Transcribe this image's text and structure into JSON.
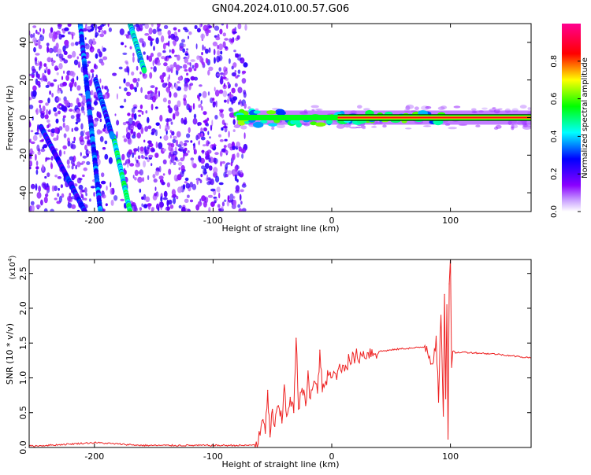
{
  "title": "GN04.2024.010.00.57.G06",
  "chart_data": [
    {
      "type": "heatmap",
      "name": "spectrogram",
      "xlabel": "Height of straight line (km)",
      "ylabel": "Frequency (Hz)",
      "xlim": [
        -255,
        168
      ],
      "ylim": [
        -50,
        50
      ],
      "x_ticks": [
        -200,
        -100,
        0,
        100
      ],
      "y_ticks": [
        -40,
        -20,
        0,
        20,
        40
      ],
      "features": [
        {
          "kind": "diagonal-streak",
          "x": [
            -212,
            -195
          ],
          "y": [
            50,
            -50
          ],
          "amplitude": 0.3
        },
        {
          "kind": "diagonal-streak",
          "x": [
            -245,
            -208
          ],
          "y": [
            -5,
            -50
          ],
          "amplitude": 0.25
        },
        {
          "kind": "diagonal-streak",
          "x": [
            -170,
            -158
          ],
          "y": [
            50,
            25
          ],
          "amplitude": 0.4
        },
        {
          "kind": "diagonal-streak",
          "x": [
            -184,
            -170
          ],
          "y": [
            -10,
            -50
          ],
          "amplitude": 0.45
        },
        {
          "kind": "diagonal-streak",
          "x": [
            -199,
            -185
          ],
          "y": [
            20,
            -10
          ],
          "amplitude": 0.3
        },
        {
          "kind": "horizontal-band",
          "x": [
            -80,
            168
          ],
          "y": 0,
          "amplitude": 0.95
        }
      ],
      "colorbar": {
        "label": "Normalized spectral amplitude",
        "ticks": [
          0.0,
          0.2,
          0.4,
          0.6,
          0.8
        ],
        "range": [
          0,
          1
        ],
        "colors": [
          "#ffffff",
          "#8a00ff",
          "#0000ff",
          "#00ffff",
          "#00ff00",
          "#ffff00",
          "#ff0000",
          "#ff00ff"
        ]
      }
    },
    {
      "type": "line",
      "name": "snr",
      "xlabel": "Height of straight line (km)",
      "ylabel": "SNR (10 * v/v)",
      "y_scale_label": "(x10",
      "y_scale_exp": "4",
      "xlim": [
        -255,
        168
      ],
      "ylim": [
        0,
        2.7
      ],
      "x_ticks": [
        -200,
        -100,
        0,
        100
      ],
      "y_ticks": [
        "0.0",
        "0.5",
        "1.0",
        "1.5",
        "2.0",
        "2.5"
      ],
      "color": "#ee2222",
      "x": [
        -255,
        -240,
        -220,
        -200,
        -190,
        -180,
        -160,
        -140,
        -120,
        -100,
        -80,
        -70,
        -62,
        -58,
        -56,
        -54,
        -52,
        -50,
        -48,
        -45,
        -42,
        -40,
        -38,
        -35,
        -32,
        -30,
        -28,
        -25,
        -22,
        -20,
        -18,
        -15,
        -12,
        -10,
        -8,
        -5,
        -2,
        0,
        5,
        10,
        15,
        20,
        25,
        30,
        40,
        50,
        60,
        70,
        80,
        85,
        88,
        90,
        92,
        94,
        95,
        96,
        97,
        98,
        99,
        100,
        101,
        102,
        105,
        110,
        120,
        130,
        140,
        150,
        160,
        168
      ],
      "y": [
        0.02,
        0.03,
        0.05,
        0.07,
        0.06,
        0.05,
        0.03,
        0.03,
        0.03,
        0.03,
        0.03,
        0.03,
        0.05,
        0.4,
        0.2,
        0.82,
        0.15,
        0.55,
        0.3,
        0.6,
        0.35,
        0.9,
        0.45,
        0.72,
        0.5,
        1.57,
        0.55,
        0.85,
        0.6,
        1.1,
        0.7,
        0.95,
        0.78,
        1.4,
        0.8,
        0.95,
        1.05,
        1.0,
        1.1,
        1.18,
        1.25,
        1.3,
        1.33,
        1.36,
        1.38,
        1.4,
        1.42,
        1.43,
        1.45,
        1.2,
        1.6,
        0.65,
        1.9,
        0.45,
        2.2,
        0.7,
        2.05,
        0.12,
        2.35,
        2.72,
        1.15,
        1.38,
        1.36,
        1.37,
        1.36,
        1.35,
        1.34,
        1.32,
        1.3,
        1.29
      ]
    }
  ]
}
